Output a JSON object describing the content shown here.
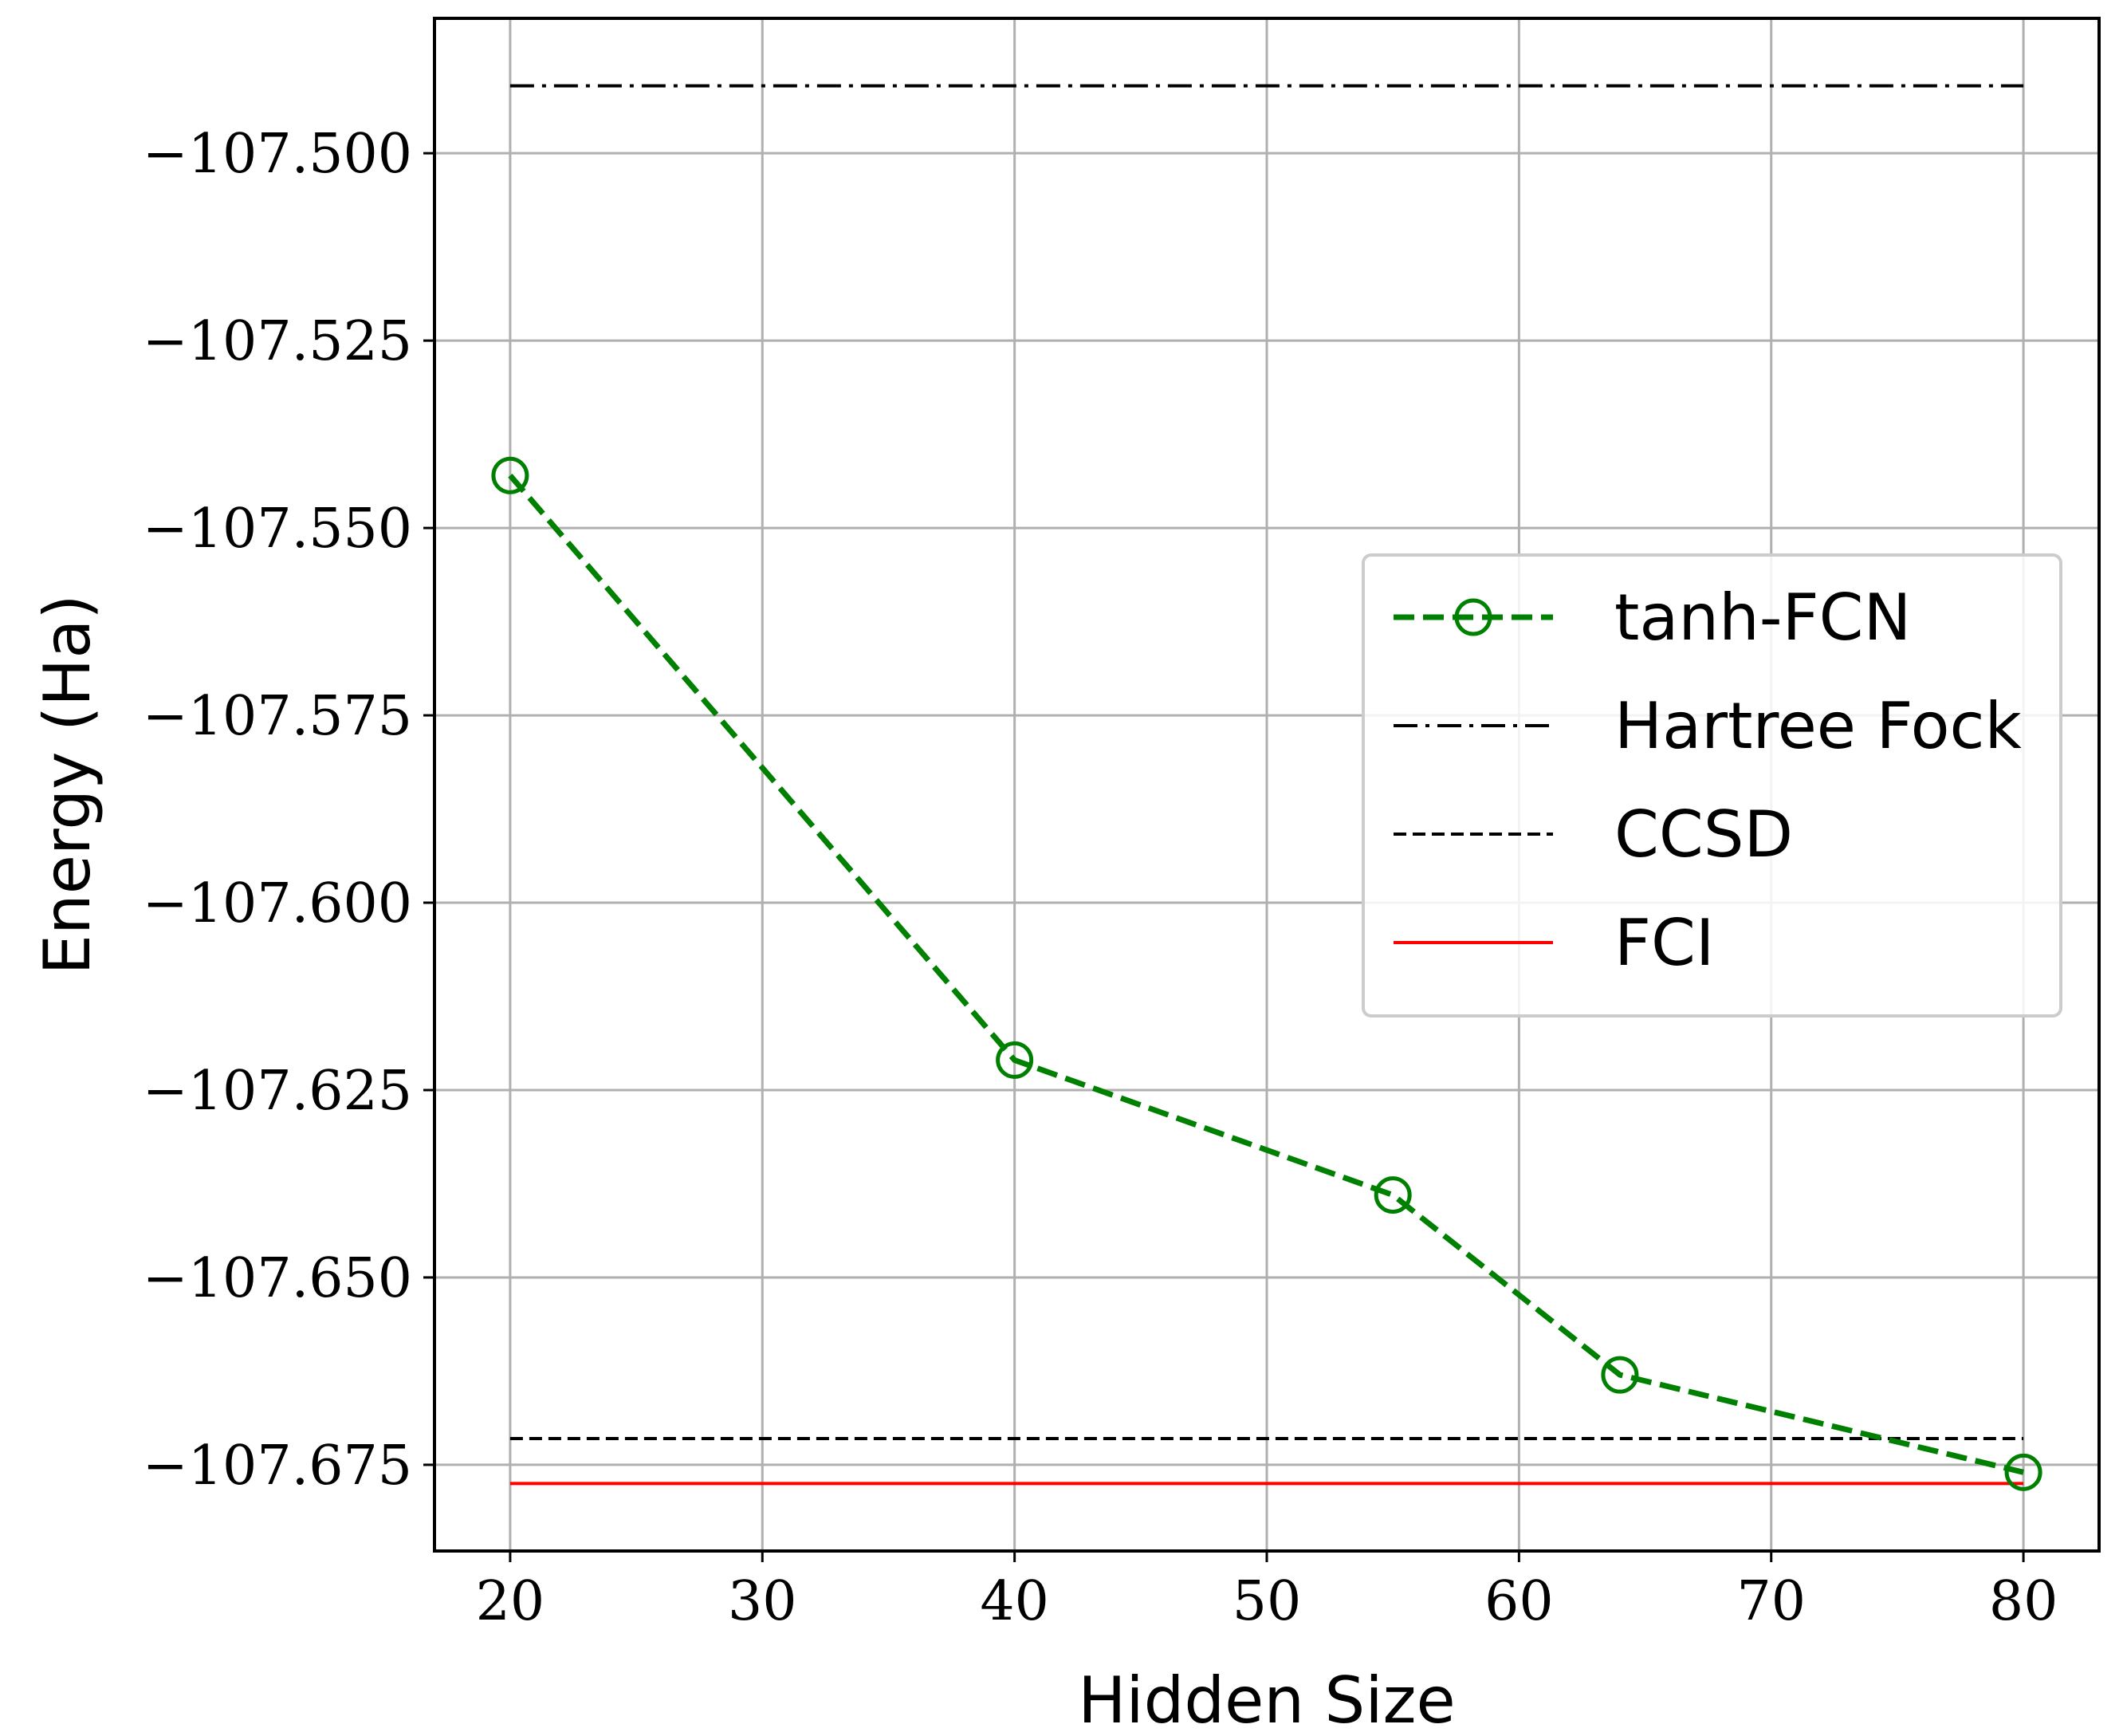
{
  "chart_data": {
    "type": "line",
    "title": "",
    "xlabel": "Hidden Size",
    "ylabel": "Energy (Ha)",
    "xlim": [
      17,
      83
    ],
    "ylim": [
      -107.6865,
      -107.482
    ],
    "xticks": [
      20,
      30,
      40,
      50,
      60,
      70,
      80
    ],
    "xtick_labels": [
      "20",
      "30",
      "40",
      "50",
      "60",
      "70",
      "80"
    ],
    "yticks": [
      -107.5,
      -107.525,
      -107.55,
      -107.575,
      -107.6,
      -107.625,
      -107.65,
      -107.675
    ],
    "ytick_labels": [
      "−107.500",
      "−107.525",
      "−107.550",
      "−107.575",
      "−107.600",
      "−107.625",
      "−107.650",
      "−107.675"
    ],
    "grid": true,
    "legend_position": "center-right",
    "series": [
      {
        "name": "tanh-FCN",
        "style": "dashed-line-circle-markers",
        "color": "#008000",
        "x": [
          20,
          40,
          55,
          64,
          80
        ],
        "y": [
          -107.543,
          -107.621,
          -107.639,
          -107.663,
          -107.676
        ]
      },
      {
        "name": "Hartree Fock",
        "style": "dash-dot-line",
        "color": "#000000",
        "x": [
          20,
          80
        ],
        "y": [
          -107.491,
          -107.491
        ]
      },
      {
        "name": "CCSD",
        "style": "dashed-line",
        "color": "#000000",
        "x": [
          20,
          80
        ],
        "y": [
          -107.6715,
          -107.6715
        ]
      },
      {
        "name": "FCI",
        "style": "solid-line",
        "color": "#ff0000",
        "x": [
          20,
          80
        ],
        "y": [
          -107.6775,
          -107.6775
        ]
      }
    ]
  }
}
